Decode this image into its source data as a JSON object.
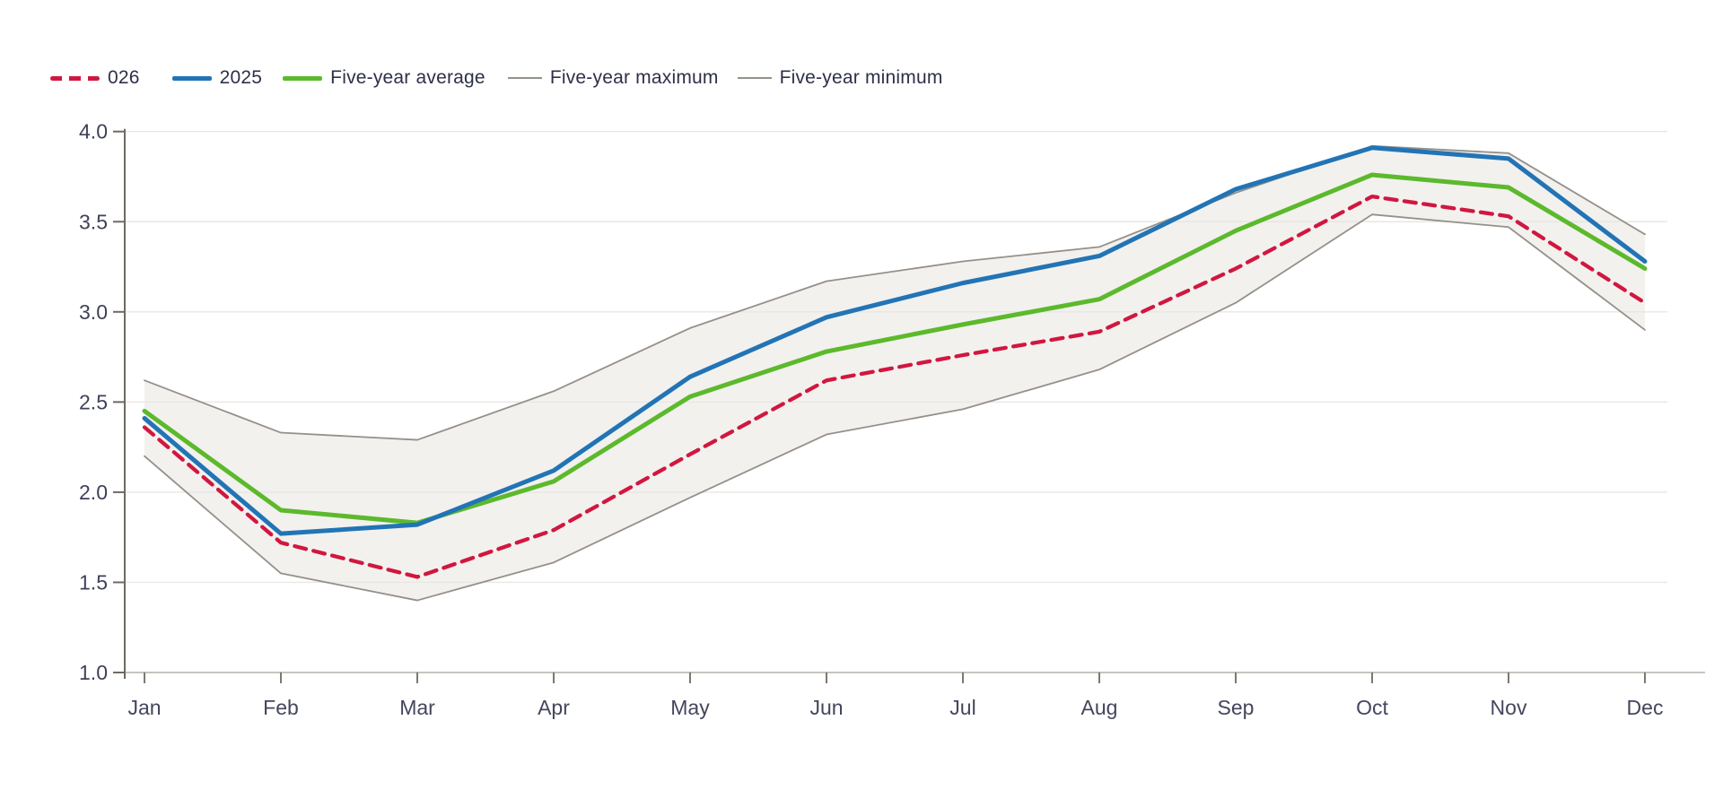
{
  "legend": {
    "items": [
      {
        "label": "026",
        "swatch": "dashed",
        "color": "#d1173f"
      },
      {
        "label": "2025",
        "swatch": "solid",
        "color": "#2274b5"
      },
      {
        "label": "Five-year average",
        "swatch": "solid",
        "color": "#5cb92c"
      },
      {
        "label": "Five-year maximum",
        "swatch": "thin",
        "color": "#96908a"
      },
      {
        "label": "Five-year minimum",
        "swatch": "thin",
        "color": "#96908a"
      }
    ]
  },
  "axes": {
    "y_tick_labels": [
      "4.0",
      "3.5",
      "3.0",
      "2.5",
      "2.0",
      "1.5",
      "1.0"
    ],
    "x_tick_labels": [
      "Jan",
      "Feb",
      "Mar",
      "Apr",
      "May",
      "Jun",
      "Jul",
      "Aug",
      "Sep",
      "Oct",
      "Nov",
      "Dec"
    ]
  },
  "chart_data": {
    "type": "line",
    "categories": [
      "Jan",
      "Feb",
      "Mar",
      "Apr",
      "May",
      "Jun",
      "Jul",
      "Aug",
      "Sep",
      "Oct",
      "Nov",
      "Dec"
    ],
    "series": [
      {
        "name": "026",
        "style": "dashed",
        "color": "#d1173f",
        "values": [
          2.36,
          1.72,
          1.53,
          1.79,
          2.21,
          2.62,
          2.76,
          2.89,
          3.24,
          3.64,
          3.53,
          3.05
        ]
      },
      {
        "name": "2025",
        "style": "solid",
        "color": "#2274b5",
        "values": [
          2.41,
          1.77,
          1.82,
          2.12,
          2.64,
          2.97,
          3.16,
          3.31,
          3.68,
          3.91,
          3.85,
          3.28
        ]
      },
      {
        "name": "Five-year average",
        "style": "solid",
        "color": "#5cb92c",
        "values": [
          2.45,
          1.9,
          1.83,
          2.06,
          2.53,
          2.78,
          2.93,
          3.07,
          3.45,
          3.76,
          3.69,
          3.24
        ]
      },
      {
        "name": "Five-year maximum",
        "style": "band-edge",
        "color": "#96908a",
        "values": [
          2.62,
          2.33,
          2.29,
          2.56,
          2.91,
          3.17,
          3.28,
          3.36,
          3.66,
          3.92,
          3.88,
          3.43
        ]
      },
      {
        "name": "Five-year minimum",
        "style": "band-edge",
        "color": "#96908a",
        "values": [
          2.2,
          1.55,
          1.4,
          1.61,
          1.97,
          2.32,
          2.46,
          2.68,
          3.05,
          3.54,
          3.47,
          2.9
        ]
      }
    ],
    "band": {
      "upper": "Five-year maximum",
      "lower": "Five-year minimum",
      "fill": "#f2f1ee"
    },
    "ylim": [
      1.0,
      4.0
    ],
    "y_tick_step": 0.5,
    "grid": true,
    "legend_position": "top-left",
    "colors": {
      "grid_line": "#e8e7e4",
      "x_axis_line": "#c7c4bf",
      "y_axis_line": "#6e6a64",
      "tick_mark": "#6e6a64",
      "y_label_text": "#3f415a",
      "x_label_text": "#44465c"
    }
  }
}
